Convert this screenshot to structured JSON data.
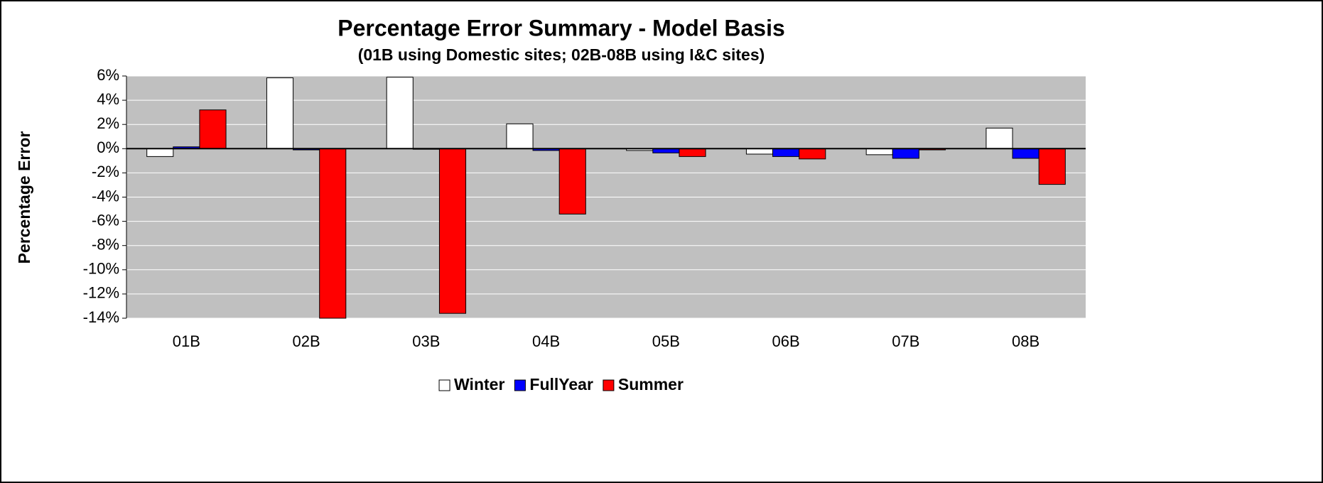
{
  "chart_data": {
    "type": "bar",
    "title": "Percentage Error Summary - Model Basis",
    "subtitle": "(01B using Domestic sites; 02B-08B using I&C sites)",
    "y_label": "Percentage Error",
    "categories": [
      "01B",
      "02B",
      "03B",
      "04B",
      "05B",
      "06B",
      "07B",
      "08B"
    ],
    "series": [
      {
        "name": "Winter",
        "color": "#ffffff",
        "values": [
          -0.65,
          5.85,
          5.9,
          2.05,
          -0.15,
          -0.45,
          -0.5,
          1.7
        ]
      },
      {
        "name": "FullYear",
        "color": "#0000ff",
        "values": [
          0.15,
          -0.1,
          -0.05,
          -0.15,
          -0.35,
          -0.65,
          -0.8,
          -0.8
        ]
      },
      {
        "name": "Summer",
        "color": "#ff0000",
        "values": [
          3.2,
          -14.0,
          -13.6,
          -5.4,
          -0.65,
          -0.85,
          -0.1,
          -2.95
        ]
      }
    ],
    "ylim": [
      -14,
      6
    ],
    "yticks": [
      {
        "value": -14,
        "label": "-14%"
      },
      {
        "value": -12,
        "label": "-12%"
      },
      {
        "value": -10,
        "label": "-10%"
      },
      {
        "value": -8,
        "label": "-8%"
      },
      {
        "value": -6,
        "label": "-6%"
      },
      {
        "value": -4,
        "label": "-4%"
      },
      {
        "value": -2,
        "label": "-2%"
      },
      {
        "value": 0,
        "label": "0%"
      },
      {
        "value": 2,
        "label": "2%"
      },
      {
        "value": 4,
        "label": "4%"
      },
      {
        "value": 6,
        "label": "6%"
      }
    ],
    "grid": true,
    "plot_background": "#c0c0c0",
    "legend": "bottom"
  }
}
